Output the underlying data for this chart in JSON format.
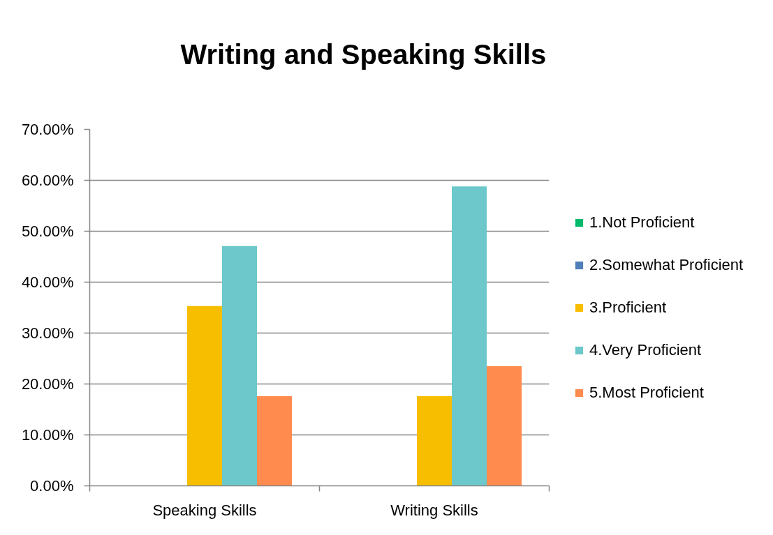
{
  "chart_data": {
    "type": "bar",
    "title": "Writing and Speaking Skills",
    "categories": [
      "Speaking Skills",
      "Writing Skills"
    ],
    "series": [
      {
        "name": "1.Not Proficient",
        "color": "#00b96b",
        "values": [
          0,
          0
        ]
      },
      {
        "name": "2.Somewhat Proficient",
        "color": "#4f7fb9",
        "values": [
          0,
          0
        ]
      },
      {
        "name": "3.Proficient",
        "color": "#f7be00",
        "values": [
          35.3,
          17.6
        ]
      },
      {
        "name": "4.Very Proficient",
        "color": "#6cc8cb",
        "values": [
          47.1,
          58.8
        ]
      },
      {
        "name": "5.Most Proficient",
        "color": "#ff8b4f",
        "values": [
          17.6,
          23.5
        ]
      }
    ],
    "ylim": [
      0,
      70
    ],
    "yticks": [
      {
        "value": 0,
        "label": "0.00%"
      },
      {
        "value": 10,
        "label": "10.00%"
      },
      {
        "value": 20,
        "label": "20.00%"
      },
      {
        "value": 30,
        "label": "30.00%"
      },
      {
        "value": 40,
        "label": "40.00%"
      },
      {
        "value": 50,
        "label": "50.00%"
      },
      {
        "value": 60,
        "label": "60.00%"
      },
      {
        "value": 70,
        "label": "70.00%"
      }
    ],
    "grid": "y",
    "legend": "right"
  }
}
